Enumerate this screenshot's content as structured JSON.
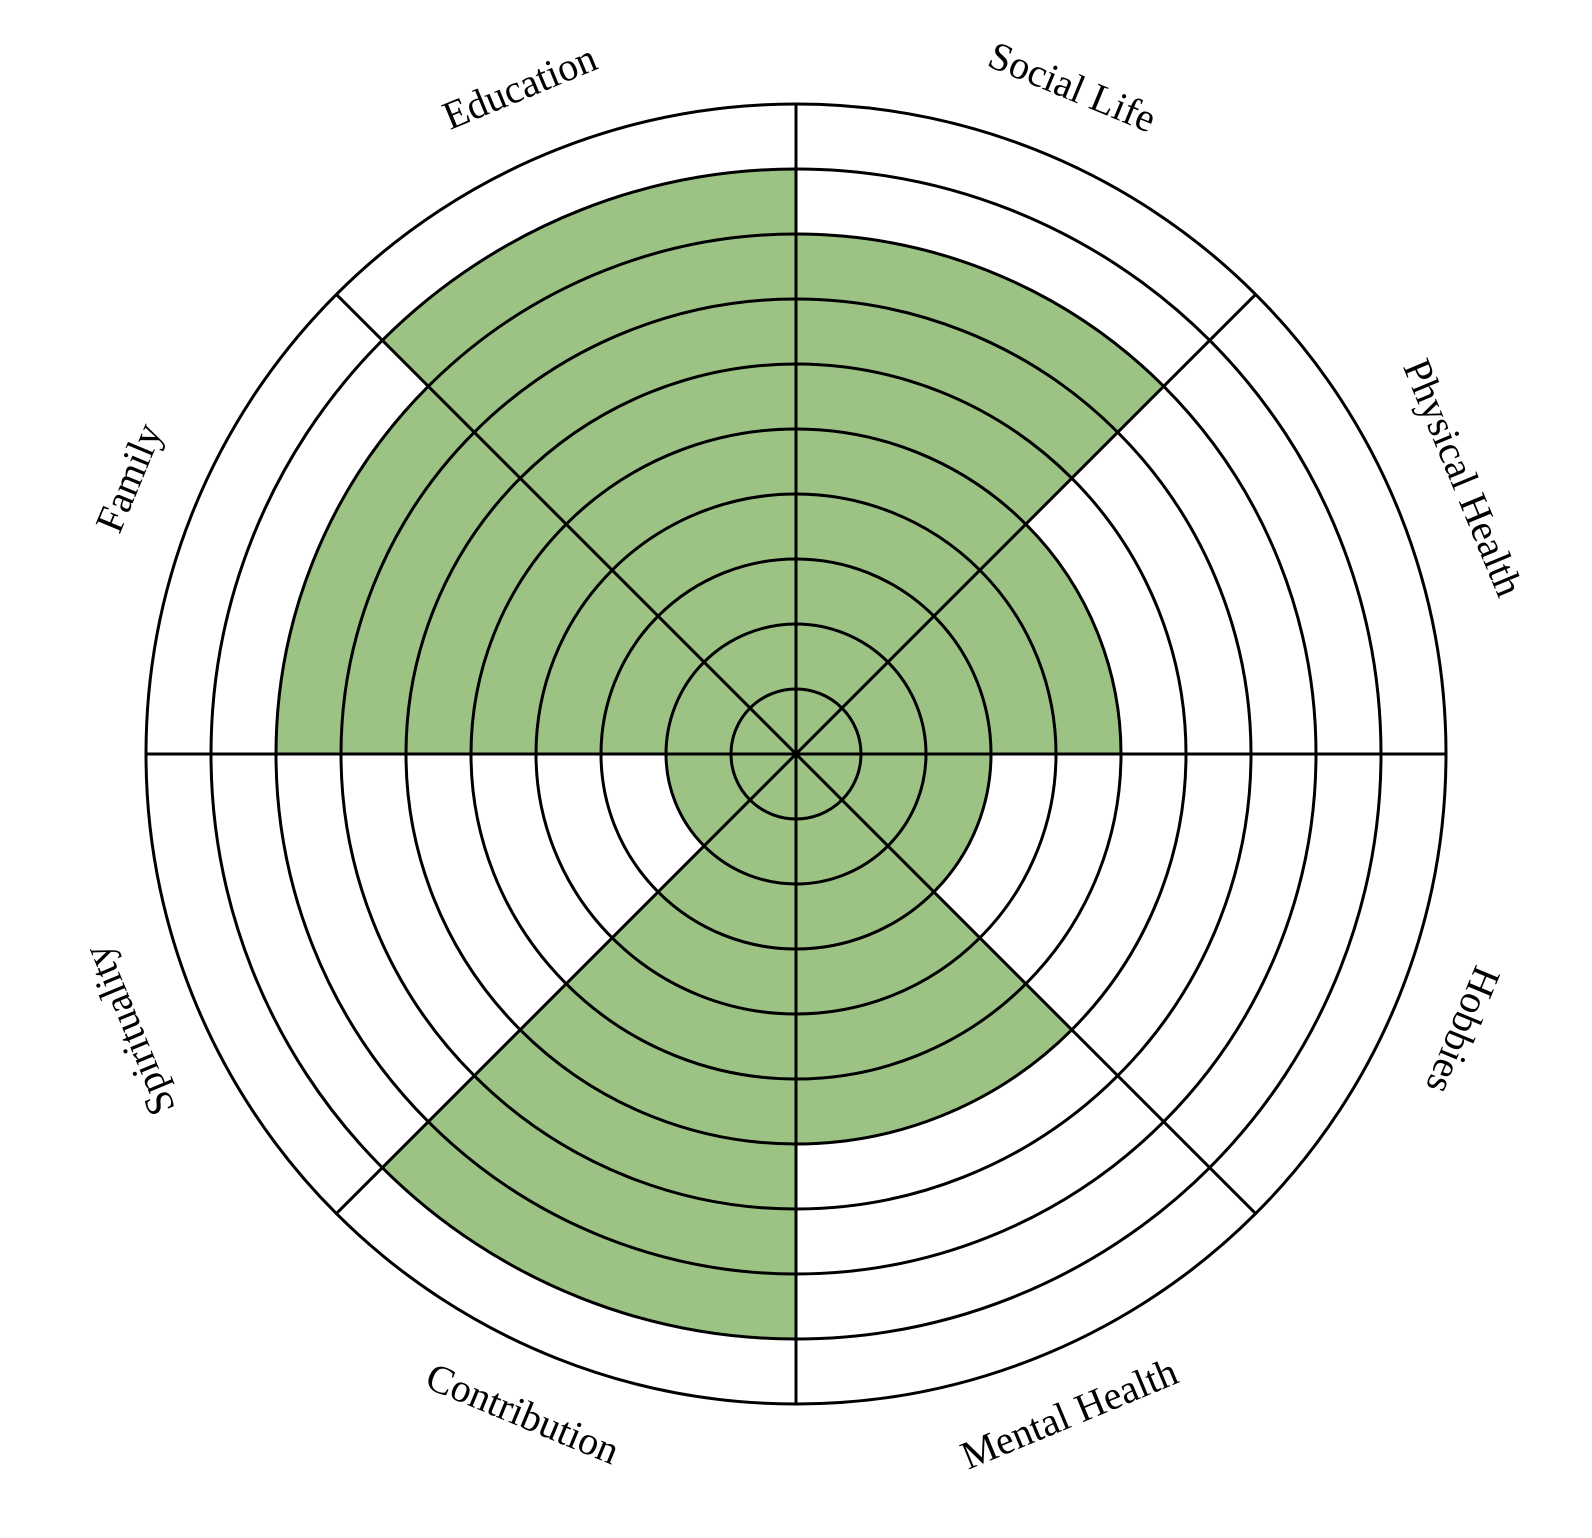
{
  "chart_data": {
    "type": "polar-area",
    "title": "",
    "scale_max": 10,
    "fill_color": "#9dc384",
    "line_color": "#000000",
    "background_color": "#ffffff",
    "categories": [
      "Social Life",
      "Physical Health",
      "Hobbies",
      "Mental Health",
      "Contribution",
      "Spirituality",
      "Family",
      "Education"
    ],
    "values": [
      8,
      5,
      3,
      6,
      9,
      2,
      8,
      9
    ]
  }
}
